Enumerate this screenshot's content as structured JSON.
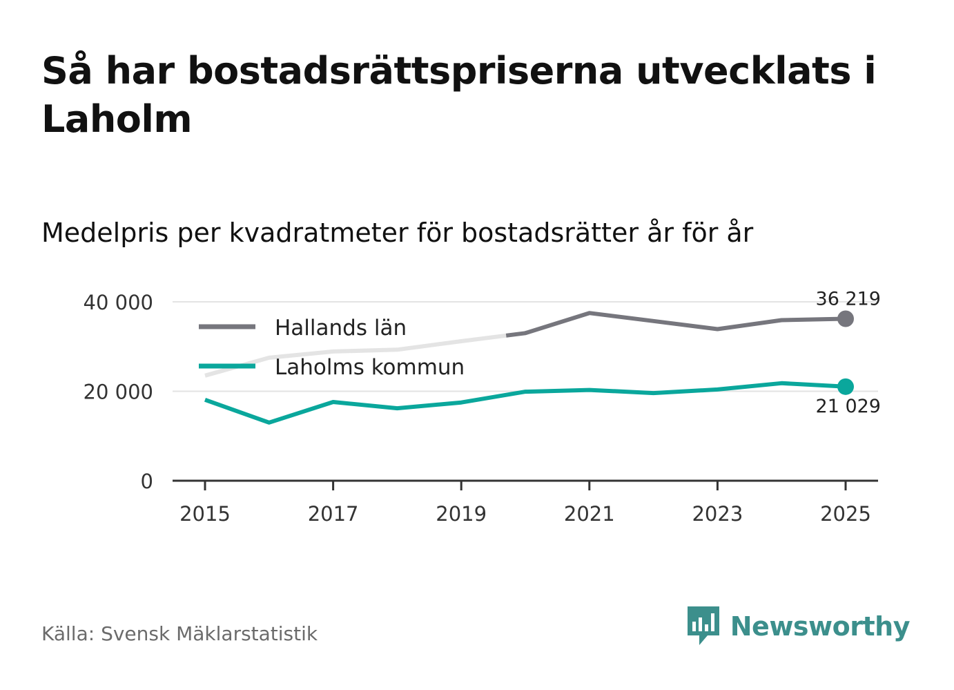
{
  "header": {
    "title": "Så har bostadsrättspriserna utvecklats i Laholm",
    "subtitle": "Medelpris per kvadratmeter för bostadsrätter år för år"
  },
  "footer": {
    "source": "Källa: Svensk Mäklarstatistik",
    "brand": "Newsworthy"
  },
  "colors": {
    "hallands": "#76767d",
    "hallands_faded": "#e4e4e4",
    "laholm": "#0aa79c",
    "grid": "#e3e3e3",
    "axis": "#333333",
    "brand": "#3c8f8c"
  },
  "chart_data": {
    "type": "line",
    "title": "Så har bostadsrättspriserna utvecklats i Laholm",
    "subtitle": "Medelpris per kvadratmeter för bostadsrätter år för år",
    "x": [
      2015,
      2016,
      2017,
      2018,
      2019,
      2020,
      2021,
      2022,
      2023,
      2024,
      2025
    ],
    "xticks": [
      "2015",
      "2017",
      "2019",
      "2021",
      "2023",
      "2025"
    ],
    "xlim": [
      2014.75,
      2025.25
    ],
    "ylim": [
      0,
      40000
    ],
    "yticks": [
      {
        "value": 0,
        "label": "0"
      },
      {
        "value": 20000,
        "label": "20 000"
      },
      {
        "value": 40000,
        "label": "40 000"
      }
    ],
    "series": [
      {
        "name": "Hallands län",
        "values": [
          23500,
          27500,
          28900,
          29300,
          31200,
          33000,
          37500,
          35700,
          33900,
          35900,
          36219
        ],
        "faded_until": 2019.7,
        "end_label": "36 219"
      },
      {
        "name": "Laholms kommun",
        "values": [
          18100,
          13000,
          17600,
          16200,
          17500,
          19900,
          20300,
          19600,
          20400,
          21800,
          21029
        ],
        "end_label": "21 029"
      }
    ],
    "legend": "top-left"
  }
}
